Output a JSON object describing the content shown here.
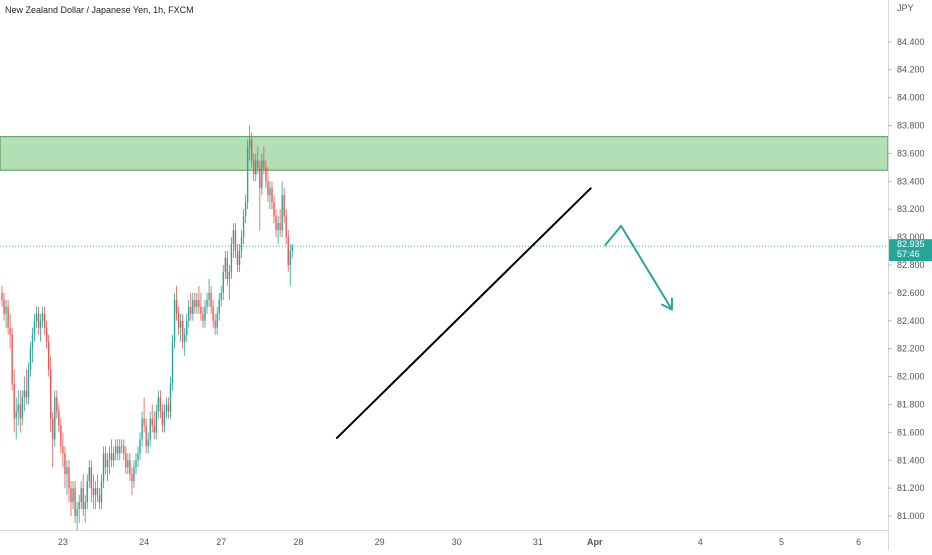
{
  "header": {
    "title": "New Zealand Dollar / Japanese Yen, 1h, FXCM"
  },
  "price_scale": {
    "currency_label": "JPY",
    "last_price": "82.935",
    "countdown": "57:46"
  },
  "colors": {
    "up": "#26a69a",
    "down": "#ef5350",
    "zone_fill": "#b2dfb5",
    "zone_border": "#2e7d32",
    "trendline": "#000000",
    "forecast_arrow": "#26a69a",
    "price_line": "#26a69a",
    "axis_text": "#555555"
  },
  "chart_data": {
    "type": "candlestick",
    "title": "New Zealand Dollar / Japanese Yen, 1h, FXCM",
    "ylabel": "JPY",
    "ylim": [
      80.9,
      84.7
    ],
    "y_ticks": [
      "84.400",
      "84.200",
      "84.000",
      "83.800",
      "83.600",
      "83.400",
      "83.200",
      "83.000",
      "82.800",
      "82.600",
      "82.400",
      "82.200",
      "82.000",
      "81.800",
      "81.600",
      "81.400",
      "81.200",
      "81.000"
    ],
    "x_ticks": [
      "23",
      "24",
      "27",
      "28",
      "29",
      "30",
      "31",
      "Apr",
      "4",
      "5",
      "6"
    ],
    "x_tick_index": [
      30,
      70,
      108,
      146,
      186,
      224,
      264,
      292,
      344,
      384,
      422
    ],
    "candles": [
      [
        82.6,
        82.65,
        82.5,
        82.55
      ],
      [
        82.55,
        82.6,
        82.4,
        82.45
      ],
      [
        82.45,
        82.55,
        82.35,
        82.5
      ],
      [
        82.5,
        82.55,
        82.3,
        82.35
      ],
      [
        82.35,
        82.45,
        82.2,
        82.3
      ],
      [
        82.3,
        82.35,
        81.9,
        81.95
      ],
      [
        81.95,
        82.05,
        81.6,
        81.7
      ],
      [
        81.7,
        81.85,
        81.55,
        81.75
      ],
      [
        81.75,
        81.9,
        81.65,
        81.8
      ],
      [
        81.8,
        81.9,
        81.6,
        81.7
      ],
      [
        81.7,
        81.9,
        81.65,
        81.85
      ],
      [
        81.85,
        82.0,
        81.75,
        81.9
      ],
      [
        81.9,
        82.05,
        81.8,
        81.85
      ],
      [
        81.85,
        82.1,
        81.8,
        82.05
      ],
      [
        82.05,
        82.25,
        82.0,
        82.2
      ],
      [
        82.2,
        82.35,
        82.1,
        82.3
      ],
      [
        82.3,
        82.45,
        82.25,
        82.4
      ],
      [
        82.4,
        82.5,
        82.35,
        82.45
      ],
      [
        82.45,
        82.5,
        82.3,
        82.35
      ],
      [
        82.35,
        82.45,
        82.25,
        82.4
      ],
      [
        82.4,
        82.5,
        82.35,
        82.45
      ],
      [
        82.45,
        82.5,
        82.3,
        82.35
      ],
      [
        82.35,
        82.4,
        82.2,
        82.25
      ],
      [
        82.25,
        82.3,
        82.0,
        82.05
      ],
      [
        82.05,
        82.15,
        81.6,
        81.7
      ],
      [
        81.7,
        81.75,
        81.35,
        81.55
      ],
      [
        81.55,
        81.9,
        81.5,
        81.85
      ],
      [
        81.85,
        81.9,
        81.7,
        81.75
      ],
      [
        81.75,
        81.8,
        81.6,
        81.65
      ],
      [
        81.65,
        81.7,
        81.45,
        81.5
      ],
      [
        81.5,
        81.6,
        81.35,
        81.45
      ],
      [
        81.45,
        81.5,
        81.2,
        81.3
      ],
      [
        81.3,
        81.4,
        81.15,
        81.35
      ],
      [
        81.35,
        81.4,
        81.1,
        81.2
      ],
      [
        81.2,
        81.25,
        81.0,
        81.1
      ],
      [
        81.1,
        81.25,
        81.05,
        81.2
      ],
      [
        81.2,
        81.25,
        80.95,
        81.0
      ],
      [
        81.0,
        81.1,
        80.9,
        81.05
      ],
      [
        81.05,
        81.15,
        80.95,
        81.1
      ],
      [
        81.1,
        81.25,
        81.05,
        81.2
      ],
      [
        81.2,
        81.3,
        81.0,
        81.05
      ],
      [
        81.05,
        81.15,
        80.95,
        81.1
      ],
      [
        81.1,
        81.3,
        81.05,
        81.25
      ],
      [
        81.25,
        81.4,
        81.2,
        81.35
      ],
      [
        81.35,
        81.4,
        81.1,
        81.2
      ],
      [
        81.2,
        81.3,
        81.05,
        81.15
      ],
      [
        81.15,
        81.25,
        81.05,
        81.2
      ],
      [
        81.2,
        81.3,
        81.1,
        81.15
      ],
      [
        81.15,
        81.2,
        81.05,
        81.1
      ],
      [
        81.1,
        81.3,
        81.05,
        81.25
      ],
      [
        81.25,
        81.5,
        81.2,
        81.45
      ],
      [
        81.45,
        81.5,
        81.3,
        81.35
      ],
      [
        81.35,
        81.45,
        81.25,
        81.4
      ],
      [
        81.4,
        81.5,
        81.3,
        81.45
      ],
      [
        81.45,
        81.55,
        81.35,
        81.4
      ],
      [
        81.4,
        81.5,
        81.35,
        81.45
      ],
      [
        81.45,
        81.55,
        81.4,
        81.5
      ],
      [
        81.5,
        81.55,
        81.4,
        81.45
      ],
      [
        81.45,
        81.55,
        81.4,
        81.5
      ],
      [
        81.5,
        81.55,
        81.45,
        81.5
      ],
      [
        81.5,
        81.55,
        81.4,
        81.45
      ],
      [
        81.45,
        81.5,
        81.3,
        81.35
      ],
      [
        81.35,
        81.45,
        81.3,
        81.4
      ],
      [
        81.4,
        81.45,
        81.25,
        81.3
      ],
      [
        81.3,
        81.35,
        81.15,
        81.25
      ],
      [
        81.25,
        81.4,
        81.2,
        81.35
      ],
      [
        81.35,
        81.45,
        81.3,
        81.4
      ],
      [
        81.4,
        81.5,
        81.35,
        81.45
      ],
      [
        81.45,
        81.6,
        81.4,
        81.55
      ],
      [
        81.55,
        81.75,
        81.5,
        81.7
      ],
      [
        81.7,
        81.85,
        81.6,
        81.65
      ],
      [
        81.65,
        81.7,
        81.45,
        81.5
      ],
      [
        81.5,
        81.6,
        81.45,
        81.55
      ],
      [
        81.55,
        81.75,
        81.5,
        81.7
      ],
      [
        81.7,
        81.8,
        81.6,
        81.65
      ],
      [
        81.65,
        81.75,
        81.55,
        81.6
      ],
      [
        81.6,
        81.8,
        81.55,
        81.75
      ],
      [
        81.75,
        81.9,
        81.7,
        81.85
      ],
      [
        81.85,
        81.9,
        81.7,
        81.75
      ],
      [
        81.75,
        81.8,
        81.6,
        81.65
      ],
      [
        81.65,
        81.8,
        81.6,
        81.75
      ],
      [
        81.75,
        81.85,
        81.7,
        81.8
      ],
      [
        81.8,
        81.85,
        81.7,
        81.75
      ],
      [
        81.75,
        82.0,
        81.7,
        81.95
      ],
      [
        81.95,
        82.3,
        81.9,
        82.25
      ],
      [
        82.25,
        82.6,
        82.2,
        82.55
      ],
      [
        82.55,
        82.65,
        82.4,
        82.45
      ],
      [
        82.45,
        82.5,
        82.3,
        82.35
      ],
      [
        82.35,
        82.45,
        82.25,
        82.4
      ],
      [
        82.4,
        82.45,
        82.2,
        82.25
      ],
      [
        82.25,
        82.35,
        82.15,
        82.3
      ],
      [
        82.3,
        82.45,
        82.25,
        82.4
      ],
      [
        82.4,
        82.55,
        82.35,
        82.5
      ],
      [
        82.5,
        82.6,
        82.4,
        82.45
      ],
      [
        82.45,
        82.6,
        82.4,
        82.55
      ],
      [
        82.55,
        82.6,
        82.45,
        82.5
      ],
      [
        82.5,
        82.6,
        82.45,
        82.55
      ],
      [
        82.55,
        82.65,
        82.45,
        82.5
      ],
      [
        82.5,
        82.6,
        82.4,
        82.45
      ],
      [
        82.45,
        82.5,
        82.35,
        82.4
      ],
      [
        82.4,
        82.55,
        82.35,
        82.5
      ],
      [
        82.5,
        82.6,
        82.45,
        82.55
      ],
      [
        82.55,
        82.7,
        82.5,
        82.6
      ],
      [
        82.6,
        82.65,
        82.45,
        82.5
      ],
      [
        82.5,
        82.55,
        82.35,
        82.4
      ],
      [
        82.4,
        82.45,
        82.3,
        82.35
      ],
      [
        82.35,
        82.5,
        82.3,
        82.45
      ],
      [
        82.45,
        82.6,
        82.4,
        82.55
      ],
      [
        82.55,
        82.65,
        82.5,
        82.6
      ],
      [
        82.6,
        82.8,
        82.55,
        82.75
      ],
      [
        82.75,
        82.9,
        82.7,
        82.85
      ],
      [
        82.85,
        82.9,
        82.65,
        82.7
      ],
      [
        82.7,
        82.8,
        82.55,
        82.75
      ],
      [
        82.75,
        83.0,
        82.7,
        82.95
      ],
      [
        82.95,
        83.1,
        82.85,
        83.05
      ],
      [
        83.05,
        83.1,
        82.85,
        82.9
      ],
      [
        82.9,
        82.95,
        82.75,
        82.8
      ],
      [
        82.8,
        82.95,
        82.75,
        82.9
      ],
      [
        82.9,
        83.05,
        82.85,
        83.0
      ],
      [
        83.0,
        83.2,
        82.95,
        83.15
      ],
      [
        83.15,
        83.3,
        83.1,
        83.25
      ],
      [
        83.25,
        83.7,
        83.2,
        83.65
      ],
      [
        83.65,
        83.8,
        83.55,
        83.7
      ],
      [
        83.7,
        83.75,
        83.5,
        83.55
      ],
      [
        83.55,
        83.6,
        83.4,
        83.45
      ],
      [
        83.45,
        83.6,
        83.4,
        83.55
      ],
      [
        83.55,
        83.65,
        83.45,
        83.5
      ],
      [
        83.5,
        83.55,
        83.05,
        83.35
      ],
      [
        83.35,
        83.6,
        83.3,
        83.55
      ],
      [
        83.55,
        83.65,
        83.45,
        83.5
      ],
      [
        83.5,
        83.55,
        83.35,
        83.4
      ],
      [
        83.4,
        83.5,
        83.25,
        83.3
      ],
      [
        83.3,
        83.4,
        83.2,
        83.35
      ],
      [
        83.35,
        83.4,
        83.2,
        83.25
      ],
      [
        83.25,
        83.3,
        83.1,
        83.15
      ],
      [
        83.15,
        83.2,
        83.0,
        83.05
      ],
      [
        83.05,
        83.15,
        82.95,
        83.1
      ],
      [
        83.1,
        83.2,
        83.0,
        83.05
      ],
      [
        83.05,
        83.4,
        83.0,
        83.3
      ],
      [
        83.3,
        83.35,
        83.1,
        83.15
      ],
      [
        83.15,
        83.2,
        82.95,
        83.0
      ],
      [
        83.0,
        83.05,
        82.75,
        82.8
      ],
      [
        82.8,
        82.95,
        82.65,
        82.9
      ],
      [
        82.9,
        82.95,
        82.85,
        82.935
      ]
    ],
    "annotations": {
      "resistance_zone": [
        83.48,
        83.72
      ],
      "trendline": [
        [
          165,
          81.56
        ],
        [
          290,
          83.35
        ]
      ],
      "forecast_path": [
        [
          297,
          82.94
        ],
        [
          305,
          83.08
        ],
        [
          330,
          82.48
        ]
      ]
    }
  }
}
